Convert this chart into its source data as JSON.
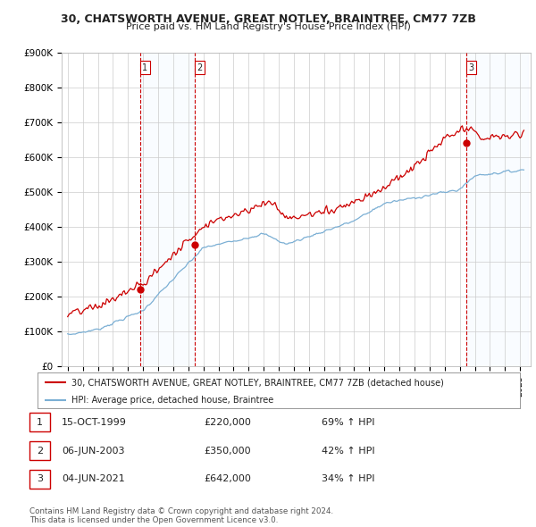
{
  "title": "30, CHATSWORTH AVENUE, GREAT NOTLEY, BRAINTREE, CM77 7ZB",
  "subtitle": "Price paid vs. HM Land Registry's House Price Index (HPI)",
  "ylabel_ticks": [
    "£0",
    "£100K",
    "£200K",
    "£300K",
    "£400K",
    "£500K",
    "£600K",
    "£700K",
    "£800K",
    "£900K"
  ],
  "ylim": [
    0,
    900000
  ],
  "sale_dates": [
    1999.79,
    2003.43,
    2021.42
  ],
  "sale_prices": [
    220000,
    350000,
    642000
  ],
  "sale_labels": [
    "1",
    "2",
    "3"
  ],
  "hpi_color": "#7bafd4",
  "price_color": "#cc0000",
  "shade_color": "#ddeeff",
  "vline_color": "#cc0000",
  "legend_label_price": "30, CHATSWORTH AVENUE, GREAT NOTLEY, BRAINTREE, CM77 7ZB (detached house)",
  "legend_label_hpi": "HPI: Average price, detached house, Braintree",
  "table_data": [
    [
      "1",
      "15-OCT-1999",
      "£220,000",
      "69% ↑ HPI"
    ],
    [
      "2",
      "06-JUN-2003",
      "£350,000",
      "42% ↑ HPI"
    ],
    [
      "3",
      "04-JUN-2021",
      "£642,000",
      "34% ↑ HPI"
    ]
  ],
  "footnote": "Contains HM Land Registry data © Crown copyright and database right 2024.\nThis data is licensed under the Open Government Licence v3.0.",
  "background_color": "#ffffff",
  "grid_color": "#cccccc"
}
